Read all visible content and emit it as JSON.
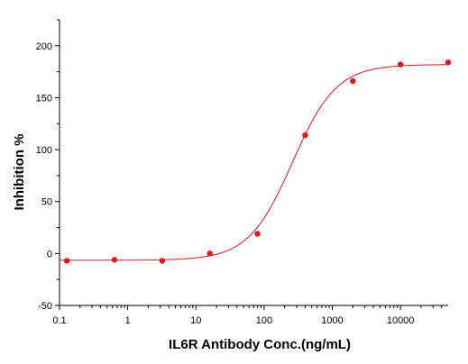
{
  "chart_data": {
    "type": "scatter",
    "title": "",
    "xlabel": "IL6R Antibody Conc.(ng/mL)",
    "ylabel": "Inhibition %",
    "xscale": "log",
    "xlim": [
      0.1,
      50000
    ],
    "ylim": [
      -50,
      225
    ],
    "xticks": [
      0.1,
      1,
      10,
      100,
      1000,
      10000
    ],
    "xtick_labels": [
      "0.1",
      "1",
      "10",
      "100",
      "1000",
      "10000"
    ],
    "yticks": [
      -50,
      0,
      50,
      100,
      150,
      200
    ],
    "ytick_labels": [
      "-50",
      "0",
      "50",
      "100",
      "150",
      "200"
    ],
    "grid": false,
    "legend": "none",
    "series": [
      {
        "x": [
          0.128,
          0.64,
          3.2,
          16,
          80,
          400,
          2000,
          10000,
          50000
        ],
        "y": [
          -7,
          -6,
          -7,
          0,
          19,
          114,
          166,
          182,
          184
        ],
        "color": "#e8141b",
        "fit": {
          "type": "4PL",
          "bottom": -6.5,
          "top": 182,
          "ec50": 260,
          "hill": 1.35,
          "color": "#e8141b"
        }
      }
    ]
  }
}
